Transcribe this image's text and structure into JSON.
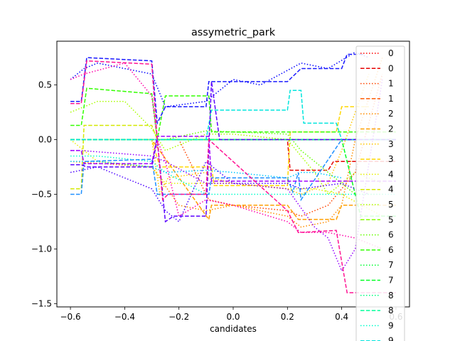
{
  "chart_data": {
    "type": "line",
    "title": "assymetric_park",
    "xlabel": "candidates",
    "ylabel": "",
    "xlim": [
      -0.65,
      0.65
    ],
    "ylim": [
      -1.53,
      0.9
    ],
    "xticks": [
      -0.6,
      -0.4,
      -0.2,
      0.0,
      0.2,
      0.4,
      0.6
    ],
    "xtick_labels": [
      "−0.6",
      "−0.4",
      "−0.2",
      "0.0",
      "0.2",
      "0.4",
      "0.6"
    ],
    "yticks": [
      -1.5,
      -1.0,
      -0.5,
      0.0,
      0.5
    ],
    "ytick_labels": [
      "−1.5",
      "−1.0",
      "−0.5",
      "0.0",
      "0.5"
    ],
    "grid": false,
    "legend_position": "right, overflowing plot area",
    "series": [
      {
        "name": "0",
        "color": "#ff0000",
        "dash": "dotted",
        "x": [
          -0.6,
          -0.3,
          -0.28,
          -0.2,
          -0.09,
          0.0,
          0.2,
          0.3,
          0.4,
          0.6
        ],
        "y": [
          0.0,
          0.0,
          0.0,
          0.0,
          0.0,
          0.0,
          0.0,
          0.0,
          0.0,
          0.0
        ]
      },
      {
        "name": "0",
        "color": "#e60000",
        "dash": "dashed",
        "x": [
          -0.6,
          0.0,
          0.2,
          0.21,
          0.25,
          0.32,
          0.35,
          0.37,
          0.6
        ],
        "y": [
          0.0,
          0.0,
          0.0,
          -0.28,
          -0.28,
          -0.28,
          -0.28,
          -0.2,
          -0.2
        ]
      },
      {
        "name": "1",
        "color": "#ff4500",
        "dash": "dotted",
        "x": [
          -0.6,
          -0.35,
          -0.2,
          -0.09,
          0.0,
          0.2,
          0.25,
          0.35,
          0.45,
          0.55
        ],
        "y": [
          0.0,
          0.0,
          0.0,
          -0.55,
          -0.6,
          -0.65,
          -0.7,
          -0.6,
          -0.3,
          0.6
        ]
      },
      {
        "name": "1",
        "color": "#ff5a00",
        "dash": "dashed",
        "x": [
          -0.6,
          0.2,
          0.6
        ],
        "y": [
          0.0,
          0.0,
          0.0
        ]
      },
      {
        "name": "2",
        "color": "#ff8c00",
        "dash": "dotted",
        "x": [
          -0.6,
          -0.3,
          -0.2,
          -0.1,
          0.0,
          0.2,
          0.25,
          0.35,
          0.4,
          0.45,
          0.55
        ],
        "y": [
          -0.2,
          -0.25,
          -0.6,
          -0.65,
          -0.6,
          -0.7,
          -0.8,
          -0.75,
          -0.6,
          0.0,
          0.75
        ]
      },
      {
        "name": "2",
        "color": "#ff9f00",
        "dash": "dashed",
        "x": [
          -0.6,
          -0.35,
          -0.3,
          -0.09,
          -0.08,
          0.2,
          0.24,
          0.38,
          0.4,
          0.6
        ],
        "y": [
          0.0,
          0.0,
          0.0,
          -0.73,
          -0.6,
          -0.6,
          -0.73,
          -0.73,
          -0.6,
          -0.6
        ]
      },
      {
        "name": "3",
        "color": "#ffc800",
        "dash": "dotted",
        "x": [
          -0.6,
          -0.3,
          -0.27,
          -0.24,
          -0.1,
          -0.08,
          0.0,
          0.2,
          0.25,
          0.35,
          0.4,
          0.5
        ],
        "y": [
          0.0,
          0.0,
          -0.5,
          -0.35,
          -0.3,
          -0.35,
          -0.4,
          -0.45,
          -0.5,
          -0.4,
          -0.1,
          0.6
        ]
      },
      {
        "name": "3",
        "color": "#ffd700",
        "dash": "dashed",
        "x": [
          -0.6,
          -0.3,
          -0.27,
          -0.08,
          -0.07,
          0.2,
          0.21,
          0.38,
          0.4,
          0.5
        ],
        "y": [
          0.0,
          0.0,
          -0.25,
          -0.25,
          -0.42,
          -0.42,
          0.07,
          0.07,
          0.3,
          0.3
        ]
      },
      {
        "name": "4",
        "color": "#e6f000",
        "dash": "dotted",
        "x": [
          -0.6,
          -0.55,
          -0.5,
          -0.3,
          -0.25,
          0.0,
          0.2,
          0.3,
          0.4,
          0.55
        ],
        "y": [
          0.0,
          -0.1,
          -0.2,
          -0.25,
          -0.4,
          -0.4,
          -0.45,
          -0.45,
          -0.5,
          -0.7
        ]
      },
      {
        "name": "4",
        "color": "#d4e800",
        "dash": "dashed",
        "x": [
          -0.6,
          -0.56,
          -0.55,
          -0.3,
          -0.28,
          -0.09,
          -0.08,
          0.2,
          0.21,
          0.4,
          0.6
        ],
        "y": [
          -0.45,
          -0.45,
          0.13,
          0.13,
          0.0,
          0.0,
          0.0,
          0.0,
          0.0,
          0.0,
          0.0
        ]
      },
      {
        "name": "5",
        "color": "#aaff00",
        "dash": "dotted",
        "x": [
          -0.6,
          -0.5,
          -0.4,
          -0.3,
          -0.25,
          -0.1,
          0.0,
          0.2,
          0.3,
          0.35,
          0.45,
          0.55
        ],
        "y": [
          0.25,
          0.35,
          0.35,
          0.1,
          -0.1,
          0.05,
          0.05,
          0.0,
          -0.3,
          -0.5,
          -0.3,
          -0.4
        ]
      },
      {
        "name": "5",
        "color": "#88ff00",
        "dash": "dashed",
        "x": [
          -0.6,
          -0.3,
          -0.28,
          -0.25,
          -0.09,
          0.0,
          0.2,
          0.6
        ],
        "y": [
          0.0,
          0.0,
          0.0,
          0.0,
          0.0,
          0.0,
          0.0,
          0.0
        ]
      },
      {
        "name": "6",
        "color": "#66ff00",
        "dash": "dotted",
        "x": [
          -0.6,
          -0.35,
          -0.3,
          -0.25,
          -0.1,
          0.0,
          0.2,
          0.25,
          0.35,
          0.45,
          0.55
        ],
        "y": [
          0.0,
          0.0,
          0.0,
          0.0,
          0.08,
          0.07,
          0.05,
          -0.1,
          -0.3,
          -0.5,
          -0.5
        ]
      },
      {
        "name": "6",
        "color": "#33ff00",
        "dash": "dashed",
        "x": [
          -0.6,
          -0.56,
          -0.54,
          -0.3,
          -0.28,
          -0.25,
          -0.09,
          -0.08,
          0.0,
          0.2,
          0.6
        ],
        "y": [
          0.13,
          0.13,
          0.47,
          0.42,
          0.0,
          0.4,
          0.4,
          0.07,
          0.07,
          0.07,
          0.07
        ]
      },
      {
        "name": "7",
        "color": "#00ff33",
        "dash": "dotted",
        "x": [
          -0.6,
          -0.4,
          -0.3,
          -0.25,
          -0.1,
          0.0,
          0.2,
          0.35,
          0.45,
          0.55
        ],
        "y": [
          0.0,
          0.0,
          0.0,
          0.0,
          0.0,
          0.0,
          0.0,
          0.0,
          0.0,
          0.0
        ]
      },
      {
        "name": "7",
        "color": "#00ff22",
        "dash": "dashed",
        "x": [
          -0.6,
          0.4,
          0.47,
          0.6
        ],
        "y": [
          0.0,
          0.0,
          -0.7,
          -0.7
        ]
      },
      {
        "name": "8",
        "color": "#00ff7f",
        "dash": "dotted",
        "x": [
          -0.6,
          0.6
        ],
        "y": [
          0.0,
          0.0
        ]
      },
      {
        "name": "8",
        "color": "#00ff99",
        "dash": "dashed",
        "x": [
          -0.6,
          0.6
        ],
        "y": [
          0.0,
          0.0
        ]
      },
      {
        "name": "9",
        "color": "#00ffcc",
        "dash": "dotted",
        "x": [
          -0.6,
          -0.56,
          -0.5,
          -0.3,
          -0.25,
          -0.1,
          0.0,
          0.2,
          0.4,
          0.6
        ],
        "y": [
          -0.15,
          -0.15,
          -0.15,
          -0.2,
          -0.3,
          -0.5,
          -0.5,
          -0.5,
          -0.5,
          -0.5
        ]
      },
      {
        "name": "9",
        "color": "#00e5dd",
        "dash": "dashed",
        "x": [
          -0.6,
          -0.3,
          -0.28,
          -0.1,
          -0.08,
          0.2,
          0.21,
          0.25,
          0.26,
          0.38,
          0.4,
          0.6
        ],
        "y": [
          0.0,
          0.0,
          0.0,
          0.0,
          0.27,
          0.27,
          0.45,
          0.45,
          0.15,
          0.15,
          0.0,
          0.0
        ]
      },
      {
        "name": "",
        "color": "#00c8ff",
        "dash": "dotted",
        "x": [
          -0.6,
          -0.5,
          -0.3,
          -0.25,
          -0.1,
          0.0,
          0.2,
          0.25,
          0.3,
          0.4
        ],
        "y": [
          -0.2,
          -0.2,
          -0.25,
          -0.3,
          -0.28,
          -0.3,
          -0.35,
          -0.3,
          -0.3,
          -0.35
        ]
      },
      {
        "name": "",
        "color": "#1e90ff",
        "dash": "dashed",
        "x": [
          -0.6,
          -0.56,
          -0.55,
          -0.3,
          -0.28,
          -0.25,
          -0.09,
          -0.08,
          0.2,
          0.22,
          0.24,
          0.25,
          0.4,
          0.6
        ],
        "y": [
          -0.5,
          -0.5,
          -0.2,
          -0.18,
          -0.5,
          -0.5,
          -0.5,
          -0.35,
          -0.35,
          -0.48,
          -0.3,
          -0.55,
          0.0,
          0.0
        ]
      },
      {
        "name": "",
        "color": "#0000ff",
        "dash": "dotted",
        "x": [
          -0.6,
          -0.55,
          -0.5,
          -0.3,
          -0.25,
          -0.1,
          0.0,
          0.1,
          0.25,
          0.35,
          0.45,
          0.5
        ],
        "y": [
          0.55,
          0.65,
          0.7,
          0.6,
          0.3,
          0.35,
          0.55,
          0.5,
          0.7,
          0.65,
          0.8,
          0.75
        ]
      },
      {
        "name": "",
        "color": "#1a1aff",
        "dash": "dashed",
        "x": [
          -0.6,
          -0.56,
          -0.54,
          -0.3,
          -0.28,
          -0.25,
          -0.1,
          -0.09,
          -0.05,
          0.2,
          0.25,
          0.4,
          0.42,
          0.48
        ],
        "y": [
          0.35,
          0.35,
          0.75,
          0.72,
          0.15,
          0.3,
          0.3,
          0.53,
          0.53,
          0.53,
          0.65,
          0.65,
          0.78,
          0.78
        ]
      },
      {
        "name": "",
        "color": "#4b00ff",
        "dash": "dotted",
        "x": [
          -0.6,
          -0.5,
          -0.3,
          -0.25,
          -0.2,
          -0.1,
          0.0,
          0.2,
          0.25,
          0.4,
          0.5
        ],
        "y": [
          -0.3,
          -0.25,
          -0.45,
          -0.65,
          -0.75,
          -0.2,
          -0.4,
          -0.4,
          -0.45,
          -0.4,
          -0.5
        ]
      },
      {
        "name": "",
        "color": "#5a00ff",
        "dash": "dashed",
        "x": [
          -0.6,
          -0.56,
          -0.54,
          -0.3,
          -0.28,
          -0.25,
          -0.22,
          -0.1,
          -0.08,
          -0.05,
          0.2,
          0.4,
          0.6
        ],
        "y": [
          -0.23,
          -0.23,
          -0.25,
          -0.25,
          0.0,
          -0.75,
          -0.7,
          -0.7,
          0.53,
          0.0,
          0.0,
          0.0,
          0.0
        ]
      },
      {
        "name": "",
        "color": "#9400ff",
        "dash": "dotted",
        "x": [
          -0.6,
          -0.56,
          -0.3,
          -0.25,
          -0.1,
          0.0,
          0.2,
          0.3,
          0.35,
          0.4,
          0.45,
          0.55
        ],
        "y": [
          -0.1,
          -0.1,
          -0.15,
          -0.2,
          -0.4,
          -0.4,
          -0.45,
          -0.8,
          -0.9,
          -1.2,
          -1.0,
          0.55
        ]
      },
      {
        "name": "",
        "color": "#a000ff",
        "dash": "dashed",
        "x": [
          -0.6,
          -0.56,
          -0.55,
          -0.3,
          -0.28,
          -0.25,
          -0.22,
          -0.09,
          -0.08,
          0.2,
          0.6
        ],
        "y": [
          -0.1,
          -0.1,
          -0.22,
          -0.22,
          0.03,
          0.03,
          0.03,
          0.03,
          -0.38,
          -0.38,
          -0.38
        ]
      },
      {
        "name": "",
        "color": "#ff00aa",
        "dash": "dotted",
        "x": [
          -0.6,
          -0.55,
          -0.4,
          -0.3,
          -0.28,
          -0.25,
          -0.2,
          -0.1,
          0.0,
          0.2,
          0.25,
          0.35,
          0.45,
          0.55
        ],
        "y": [
          0.55,
          0.6,
          0.7,
          0.4,
          0.0,
          -0.2,
          -0.7,
          -0.55,
          -0.6,
          -0.75,
          -0.85,
          -0.85,
          -0.9,
          -1.0
        ]
      },
      {
        "name": "",
        "color": "#ff1493",
        "dash": "dashed",
        "x": [
          -0.6,
          -0.56,
          -0.54,
          -0.3,
          -0.28,
          -0.26,
          -0.24,
          -0.1,
          -0.09,
          0.2,
          0.24,
          0.38,
          0.42,
          0.45,
          0.6
        ],
        "y": [
          0.33,
          0.33,
          0.72,
          0.69,
          0.0,
          -0.55,
          -0.5,
          -0.5,
          0.0,
          -0.65,
          -0.85,
          -0.83,
          -1.4,
          -1.4,
          -1.4
        ]
      }
    ]
  }
}
